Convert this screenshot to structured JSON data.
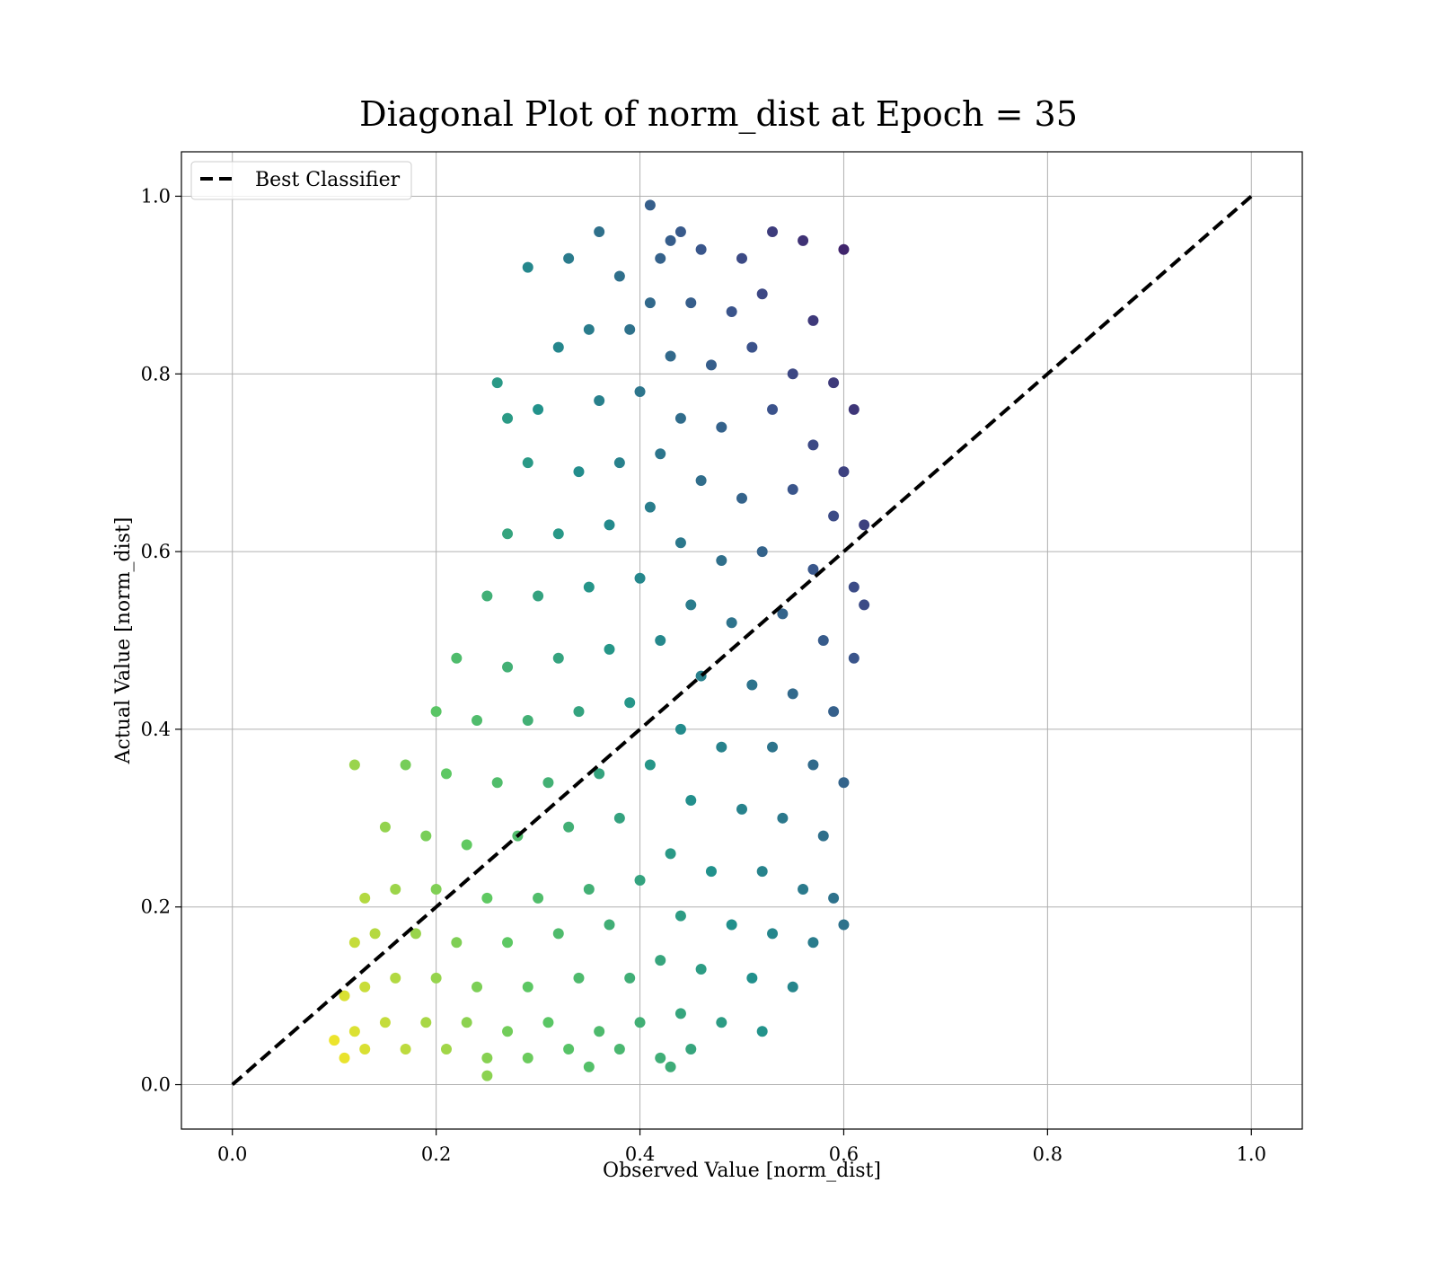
{
  "chart_data": {
    "type": "scatter",
    "title": "Diagonal Plot of norm_dist at Epoch = 35",
    "xlabel": "Observed Value [norm_dist]",
    "ylabel": "Actual Value [norm_dist]",
    "xlim": [
      -0.05,
      1.05
    ],
    "ylim": [
      -0.05,
      1.05
    ],
    "xticks": [
      "0.0",
      "0.2",
      "0.4",
      "0.6",
      "0.8",
      "1.0"
    ],
    "yticks": [
      "0.0",
      "0.2",
      "0.4",
      "0.6",
      "0.8",
      "1.0"
    ],
    "xtick_values": [
      0,
      0.2,
      0.4,
      0.6,
      0.8,
      1.0
    ],
    "ytick_values": [
      0,
      0.2,
      0.4,
      0.6,
      0.8,
      1.0
    ],
    "grid": true,
    "legend_position": "upper-left",
    "colormap": "viridis",
    "series": [
      {
        "name": "Best Classifier",
        "kind": "dashed-line",
        "color": "#000000",
        "x": [
          0.0,
          1.0
        ],
        "y": [
          0.0,
          1.0
        ]
      }
    ],
    "scatter_points": [
      [
        0.44,
        0.96
      ],
      [
        0.43,
        0.95
      ],
      [
        0.42,
        0.93
      ],
      [
        0.46,
        0.94
      ],
      [
        0.5,
        0.93
      ],
      [
        0.53,
        0.96
      ],
      [
        0.56,
        0.95
      ],
      [
        0.38,
        0.91
      ],
      [
        0.36,
        0.96
      ],
      [
        0.33,
        0.93
      ],
      [
        0.29,
        0.92
      ],
      [
        0.6,
        0.94
      ],
      [
        0.41,
        0.88
      ],
      [
        0.45,
        0.88
      ],
      [
        0.49,
        0.87
      ],
      [
        0.52,
        0.89
      ],
      [
        0.57,
        0.86
      ],
      [
        0.39,
        0.85
      ],
      [
        0.35,
        0.85
      ],
      [
        0.32,
        0.83
      ],
      [
        0.43,
        0.82
      ],
      [
        0.47,
        0.81
      ],
      [
        0.51,
        0.83
      ],
      [
        0.55,
        0.8
      ],
      [
        0.59,
        0.79
      ],
      [
        0.61,
        0.76
      ],
      [
        0.4,
        0.78
      ],
      [
        0.36,
        0.77
      ],
      [
        0.3,
        0.76
      ],
      [
        0.27,
        0.75
      ],
      [
        0.44,
        0.75
      ],
      [
        0.48,
        0.74
      ],
      [
        0.53,
        0.76
      ],
      [
        0.57,
        0.72
      ],
      [
        0.6,
        0.69
      ],
      [
        0.42,
        0.71
      ],
      [
        0.38,
        0.7
      ],
      [
        0.34,
        0.69
      ],
      [
        0.29,
        0.7
      ],
      [
        0.46,
        0.68
      ],
      [
        0.5,
        0.66
      ],
      [
        0.55,
        0.67
      ],
      [
        0.59,
        0.64
      ],
      [
        0.62,
        0.63
      ],
      [
        0.41,
        0.65
      ],
      [
        0.37,
        0.63
      ],
      [
        0.32,
        0.62
      ],
      [
        0.27,
        0.62
      ],
      [
        0.44,
        0.61
      ],
      [
        0.48,
        0.59
      ],
      [
        0.52,
        0.6
      ],
      [
        0.57,
        0.58
      ],
      [
        0.61,
        0.56
      ],
      [
        0.4,
        0.57
      ],
      [
        0.35,
        0.56
      ],
      [
        0.3,
        0.55
      ],
      [
        0.25,
        0.55
      ],
      [
        0.45,
        0.54
      ],
      [
        0.49,
        0.52
      ],
      [
        0.54,
        0.53
      ],
      [
        0.58,
        0.5
      ],
      [
        0.61,
        0.48
      ],
      [
        0.42,
        0.5
      ],
      [
        0.37,
        0.49
      ],
      [
        0.32,
        0.48
      ],
      [
        0.27,
        0.47
      ],
      [
        0.22,
        0.48
      ],
      [
        0.46,
        0.46
      ],
      [
        0.51,
        0.45
      ],
      [
        0.55,
        0.44
      ],
      [
        0.59,
        0.42
      ],
      [
        0.39,
        0.43
      ],
      [
        0.34,
        0.42
      ],
      [
        0.29,
        0.41
      ],
      [
        0.24,
        0.41
      ],
      [
        0.2,
        0.42
      ],
      [
        0.44,
        0.4
      ],
      [
        0.48,
        0.38
      ],
      [
        0.53,
        0.38
      ],
      [
        0.57,
        0.36
      ],
      [
        0.6,
        0.34
      ],
      [
        0.41,
        0.36
      ],
      [
        0.36,
        0.35
      ],
      [
        0.31,
        0.34
      ],
      [
        0.26,
        0.34
      ],
      [
        0.21,
        0.35
      ],
      [
        0.17,
        0.36
      ],
      [
        0.45,
        0.32
      ],
      [
        0.5,
        0.31
      ],
      [
        0.54,
        0.3
      ],
      [
        0.58,
        0.28
      ],
      [
        0.38,
        0.3
      ],
      [
        0.33,
        0.29
      ],
      [
        0.28,
        0.28
      ],
      [
        0.23,
        0.27
      ],
      [
        0.19,
        0.28
      ],
      [
        0.15,
        0.29
      ],
      [
        0.43,
        0.26
      ],
      [
        0.47,
        0.24
      ],
      [
        0.52,
        0.24
      ],
      [
        0.56,
        0.22
      ],
      [
        0.59,
        0.21
      ],
      [
        0.4,
        0.23
      ],
      [
        0.35,
        0.22
      ],
      [
        0.3,
        0.21
      ],
      [
        0.25,
        0.21
      ],
      [
        0.2,
        0.22
      ],
      [
        0.16,
        0.22
      ],
      [
        0.13,
        0.21
      ],
      [
        0.44,
        0.19
      ],
      [
        0.49,
        0.18
      ],
      [
        0.53,
        0.17
      ],
      [
        0.57,
        0.16
      ],
      [
        0.37,
        0.18
      ],
      [
        0.32,
        0.17
      ],
      [
        0.27,
        0.16
      ],
      [
        0.22,
        0.16
      ],
      [
        0.18,
        0.17
      ],
      [
        0.14,
        0.17
      ],
      [
        0.12,
        0.16
      ],
      [
        0.42,
        0.14
      ],
      [
        0.46,
        0.13
      ],
      [
        0.51,
        0.12
      ],
      [
        0.55,
        0.11
      ],
      [
        0.39,
        0.12
      ],
      [
        0.34,
        0.12
      ],
      [
        0.29,
        0.11
      ],
      [
        0.24,
        0.11
      ],
      [
        0.2,
        0.12
      ],
      [
        0.16,
        0.12
      ],
      [
        0.13,
        0.11
      ],
      [
        0.11,
        0.1
      ],
      [
        0.44,
        0.08
      ],
      [
        0.48,
        0.07
      ],
      [
        0.52,
        0.06
      ],
      [
        0.4,
        0.07
      ],
      [
        0.36,
        0.06
      ],
      [
        0.31,
        0.07
      ],
      [
        0.27,
        0.06
      ],
      [
        0.23,
        0.07
      ],
      [
        0.19,
        0.07
      ],
      [
        0.15,
        0.07
      ],
      [
        0.12,
        0.06
      ],
      [
        0.1,
        0.05
      ],
      [
        0.45,
        0.04
      ],
      [
        0.42,
        0.03
      ],
      [
        0.38,
        0.04
      ],
      [
        0.33,
        0.04
      ],
      [
        0.29,
        0.03
      ],
      [
        0.25,
        0.03
      ],
      [
        0.21,
        0.04
      ],
      [
        0.17,
        0.04
      ],
      [
        0.13,
        0.04
      ],
      [
        0.11,
        0.03
      ],
      [
        0.43,
        0.02
      ],
      [
        0.35,
        0.02
      ],
      [
        0.25,
        0.01
      ],
      [
        0.6,
        0.18
      ],
      [
        0.12,
        0.36
      ],
      [
        0.62,
        0.54
      ],
      [
        0.26,
        0.79
      ],
      [
        0.41,
        0.99
      ]
    ]
  }
}
